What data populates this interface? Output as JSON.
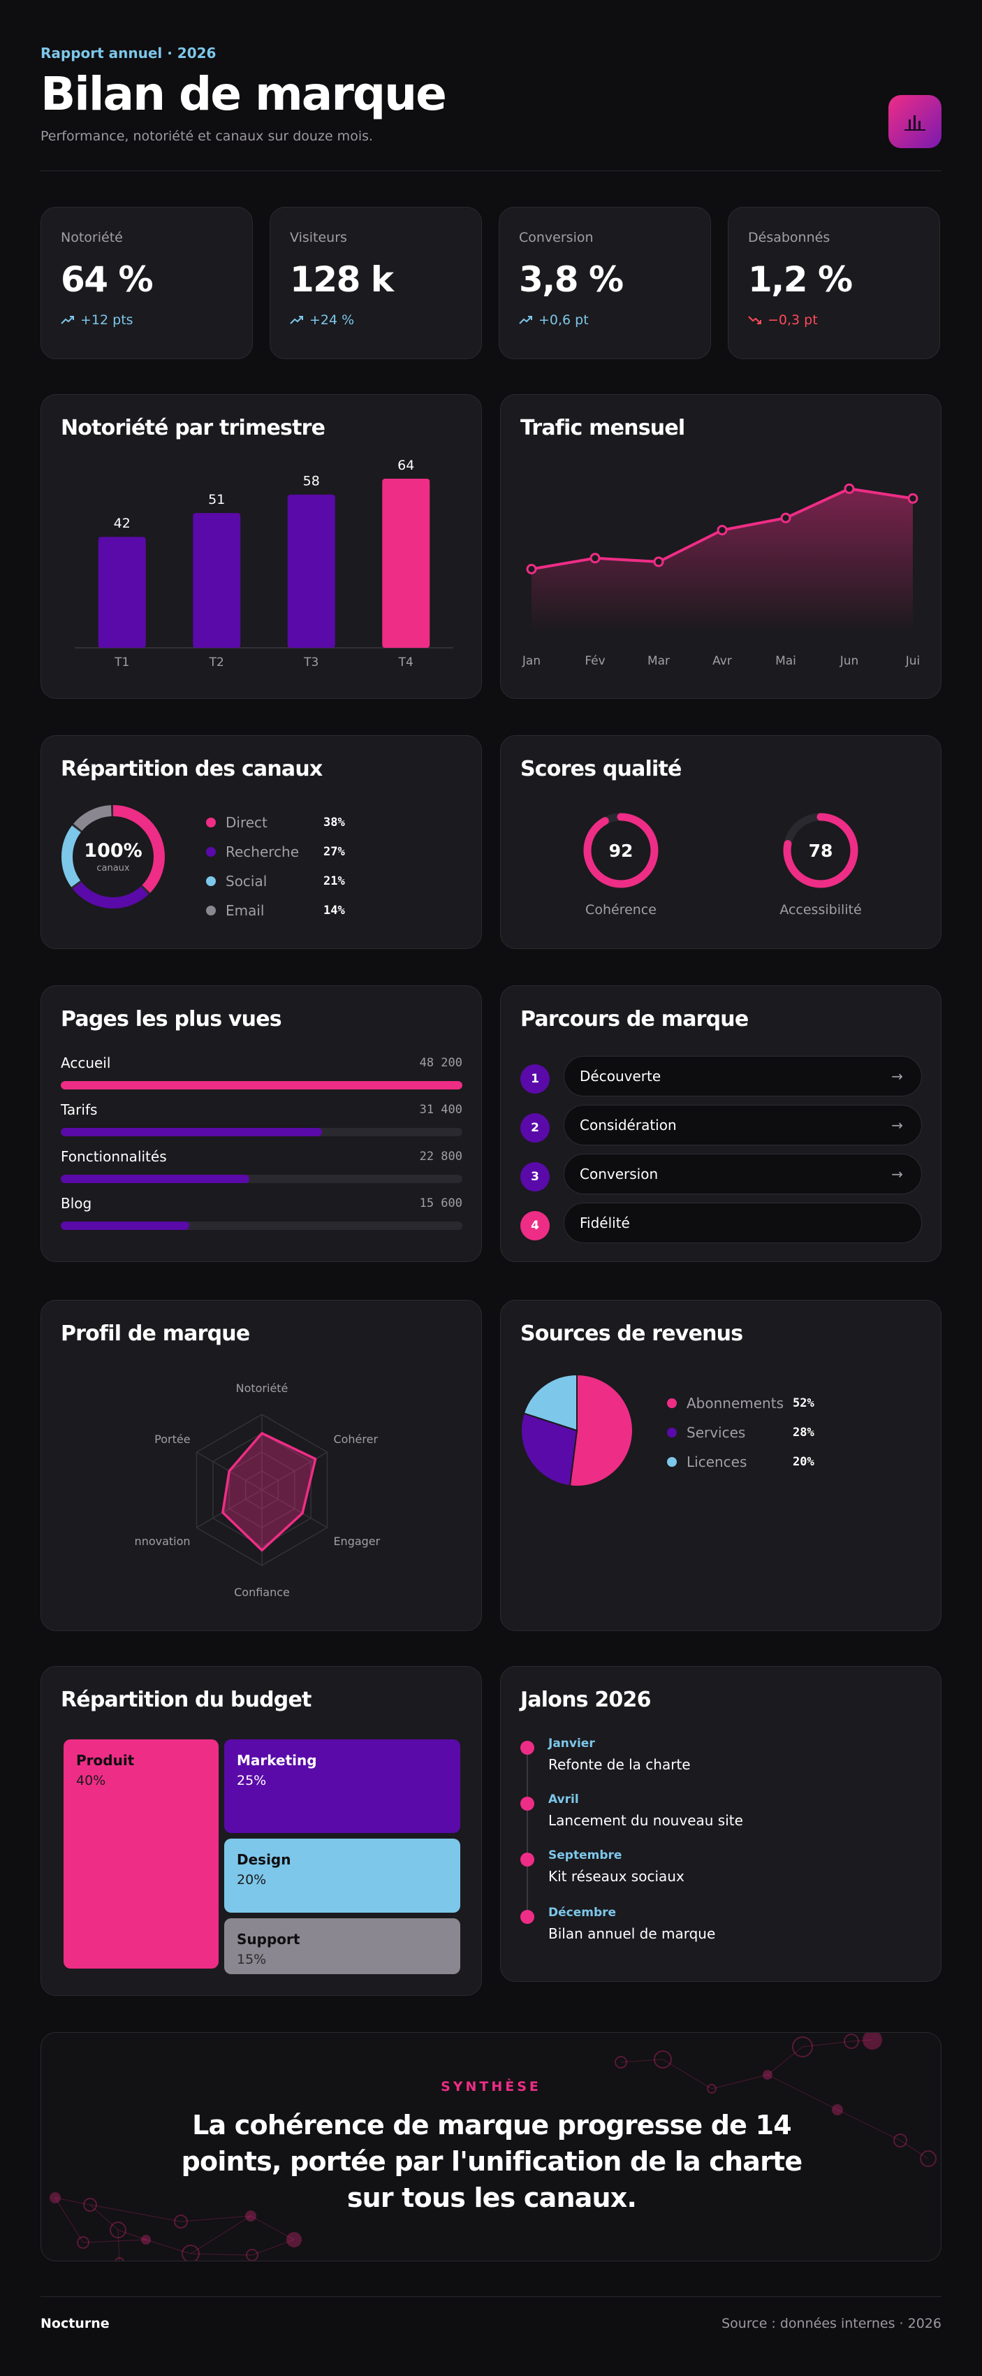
{
  "header": {
    "eyebrow": "Rapport annuel · 2026",
    "title": "Bilan de marque",
    "subtitle": "Performance, notoriété et canaux sur douze mois."
  },
  "kpis": [
    {
      "label": "Notoriété",
      "value": "64 %",
      "delta": "+12 pts",
      "trend": "up"
    },
    {
      "label": "Visiteurs",
      "value": "128 k",
      "delta": "+24 %",
      "trend": "up"
    },
    {
      "label": "Conversion",
      "value": "3,8 %",
      "delta": "+0,6 pt",
      "trend": "up"
    },
    {
      "label": "Désabonnés",
      "value": "1,2 %",
      "delta": "−0,3 pt",
      "trend": "down"
    }
  ],
  "awareness": {
    "title": "Notoriété par trimestre",
    "chart_data": {
      "type": "bar",
      "categories": [
        "T1",
        "T2",
        "T3",
        "T4"
      ],
      "values": [
        42,
        51,
        58,
        64
      ],
      "ylim": [
        0,
        64
      ],
      "highlight_index": 3
    }
  },
  "traffic": {
    "title": "Trafic mensuel",
    "chart_data": {
      "type": "area",
      "categories": [
        "Jan",
        "Fév",
        "Mar",
        "Avr",
        "Mai",
        "Jun",
        "Jui"
      ],
      "values": [
        52,
        61,
        58,
        84,
        94,
        118,
        110
      ],
      "ylim": [
        0,
        140
      ]
    }
  },
  "channels": {
    "title": "Répartition des canaux",
    "center_value": "100%",
    "center_label": "canaux",
    "chart_data": {
      "type": "pie",
      "style": "donut",
      "categories": [
        "Direct",
        "Recherche",
        "Social",
        "Email"
      ],
      "values": [
        38,
        27,
        21,
        14
      ]
    },
    "items": [
      {
        "label": "Direct",
        "value": "38%",
        "color": "#ee2d86"
      },
      {
        "label": "Recherche",
        "value": "27%",
        "color": "#5a0aa8"
      },
      {
        "label": "Social",
        "value": "21%",
        "color": "#7dc7ea"
      },
      {
        "label": "Email",
        "value": "14%",
        "color": "#8a8790"
      }
    ]
  },
  "quality": {
    "title": "Scores qualité",
    "scores": [
      {
        "label": "Cohérence",
        "value": "92",
        "fraction": 0.92
      },
      {
        "label": "Accessibilité",
        "value": "78",
        "fraction": 0.78
      }
    ]
  },
  "top_pages": {
    "title": "Pages les plus vues",
    "items": [
      {
        "label": "Accueil",
        "value": "48 200",
        "fraction": 1.0,
        "color": "#ee2d86"
      },
      {
        "label": "Tarifs",
        "value": "31 400",
        "fraction": 0.65,
        "color": "#5a0aa8"
      },
      {
        "label": "Fonctionnalités",
        "value": "22 800",
        "fraction": 0.47,
        "color": "#5a0aa8"
      },
      {
        "label": "Blog",
        "value": "15 600",
        "fraction": 0.32,
        "color": "#5a0aa8"
      }
    ]
  },
  "journey": {
    "title": "Parcours de marque",
    "steps": [
      {
        "num": "1",
        "label": "Découverte",
        "arrow": "→"
      },
      {
        "num": "2",
        "label": "Considération",
        "arrow": "→"
      },
      {
        "num": "3",
        "label": "Conversion",
        "arrow": "→"
      },
      {
        "num": "4",
        "label": "Fidélité",
        "arrow": ""
      }
    ]
  },
  "profile": {
    "title": "Profil de marque",
    "chart_data": {
      "type": "radar",
      "axes": [
        "Notoriété",
        "Cohérence",
        "Engager",
        "Confiance",
        "Innovation",
        "Portée"
      ],
      "values": [
        0.75,
        0.82,
        0.62,
        0.8,
        0.6,
        0.5
      ],
      "max": 1
    },
    "axis_display": [
      "Notoriété",
      "Cohérer",
      "Engager",
      "Confiance",
      "nnovation",
      "Portée"
    ]
  },
  "revenue": {
    "title": "Sources de revenus",
    "chart_data": {
      "type": "pie",
      "categories": [
        "Abonnements",
        "Services",
        "Licences"
      ],
      "values": [
        52,
        28,
        20
      ]
    },
    "items": [
      {
        "label": "Abonnements",
        "value": "52%",
        "color": "#ee2d86"
      },
      {
        "label": "Services",
        "value": "28%",
        "color": "#5a0aa8"
      },
      {
        "label": "Licences",
        "value": "20%",
        "color": "#7dc7ea"
      }
    ]
  },
  "budget": {
    "title": "Répartition du budget",
    "tiles": [
      {
        "name": "Produit",
        "value": "40%",
        "color": "#ee2d86"
      },
      {
        "name": "Marketing",
        "value": "25%",
        "color": "#5a0aa8"
      },
      {
        "name": "Design",
        "value": "20%",
        "color": "#7dc7ea"
      },
      {
        "name": "Support",
        "value": "15%",
        "color": "#8a8790"
      }
    ]
  },
  "milestones": {
    "title": "Jalons 2026",
    "items": [
      {
        "month": "Janvier",
        "text": "Refonte de la charte"
      },
      {
        "month": "Avril",
        "text": "Lancement du nouveau site"
      },
      {
        "month": "Septembre",
        "text": "Kit réseaux sociaux"
      },
      {
        "month": "Décembre",
        "text": "Bilan annuel de marque"
      }
    ]
  },
  "synthesis": {
    "kicker": "SYNTHÈSE",
    "quote": "La cohérence de marque progresse de 14 points, portée par l'unification de la charte sur tous les canaux."
  },
  "footer": {
    "brand": "Nocturne",
    "source": "Source : données internes · 2026"
  },
  "colors": {
    "pink": "#ee2d86",
    "purple": "#5a0aa8",
    "sky": "#7dc7ea",
    "grey": "#8a8790",
    "down": "#ff4a5c"
  }
}
